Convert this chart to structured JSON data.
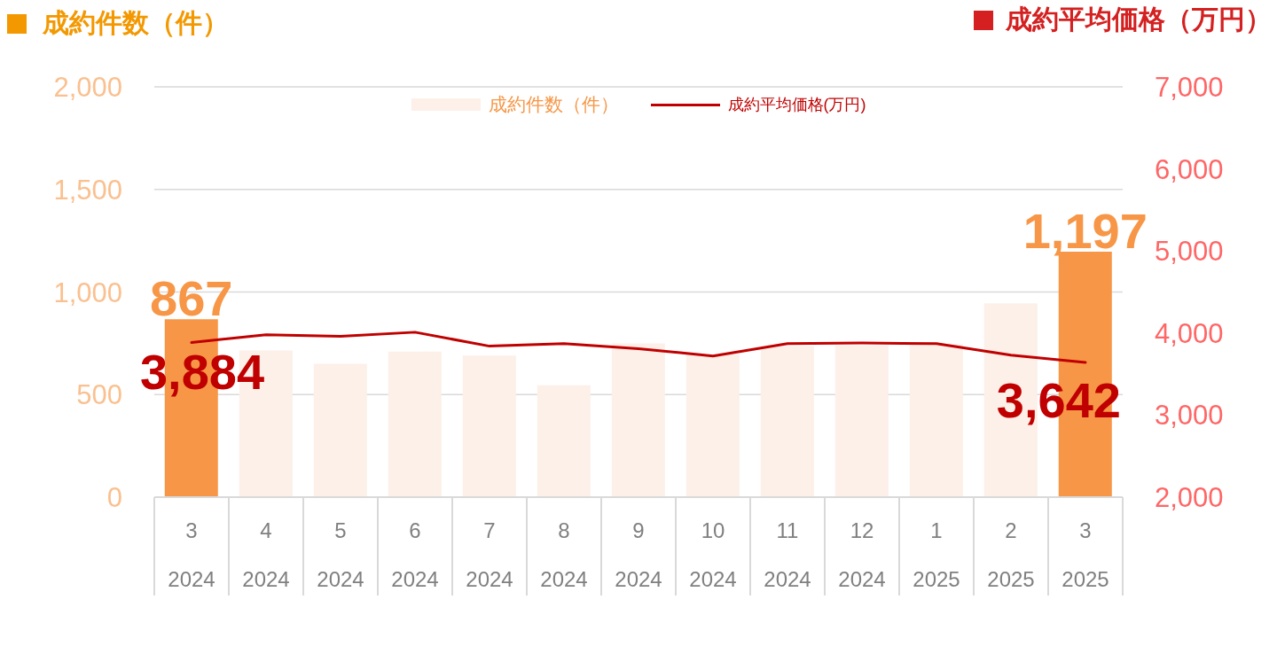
{
  "chart_data": {
    "type": "bar",
    "ylabel": "成約件数（件）",
    "y2label": "成約平均価格（万円）",
    "categories": [
      "3\n2024",
      "4\n2024",
      "5\n2024",
      "6\n2024",
      "7\n2024",
      "8\n2024",
      "9\n2024",
      "10\n2024",
      "11\n2024",
      "12\n2024",
      "1\n2025",
      "2\n2025",
      "3\n2025"
    ],
    "series": [
      {
        "name": "成約件数（件）",
        "color": "#fcf0e8",
        "colors": [
          "#f79646",
          "#fcf0e8",
          "#fcf0e8",
          "#fcf0e8",
          "#fcf0e8",
          "#fcf0e8",
          "#fcf0e8",
          "#fcf0e8",
          "#fcf0e8",
          "#fcf0e8",
          "#fcf0e8",
          "#fcf0e8",
          "#f79646"
        ],
        "values": [
          867,
          715,
          650,
          710,
          690,
          545,
          750,
          695,
          735,
          740,
          745,
          945,
          1197
        ],
        "value_labels": [
          "867",
          null,
          null,
          null,
          null,
          null,
          null,
          null,
          null,
          null,
          null,
          null,
          "1,197"
        ]
      },
      {
        "name": "成約平均価格(万円)",
        "type": "line",
        "axis": "y2",
        "color": "#c00000",
        "values": [
          3884,
          3980,
          3960,
          4010,
          3840,
          3870,
          3810,
          3720,
          3870,
          3880,
          3870,
          3730,
          3642
        ],
        "value_labels": [
          "3,884",
          null,
          null,
          null,
          null,
          null,
          null,
          null,
          null,
          null,
          null,
          null,
          "3,642"
        ]
      }
    ],
    "ylim": [
      0,
      2000
    ],
    "yticks": [
      0,
      500,
      {
        "value": 1000,
        "label": "1,000"
      },
      {
        "value": 1500,
        "label": "1,500"
      },
      {
        "value": 2000,
        "label": "2,000"
      }
    ],
    "y2lim": [
      2000,
      7000
    ],
    "y2ticks": [
      {
        "value": 2000,
        "label": "2,000"
      },
      {
        "value": 3000,
        "label": "3,000"
      },
      {
        "value": 4000,
        "label": "4,000"
      },
      {
        "value": 5000,
        "label": "5,000"
      },
      {
        "value": 6000,
        "label": "6,000"
      },
      {
        "value": 7000,
        "label": "7,000"
      }
    ],
    "grid": "y",
    "legend": "top",
    "marker": "none",
    "line_style": "solid"
  }
}
